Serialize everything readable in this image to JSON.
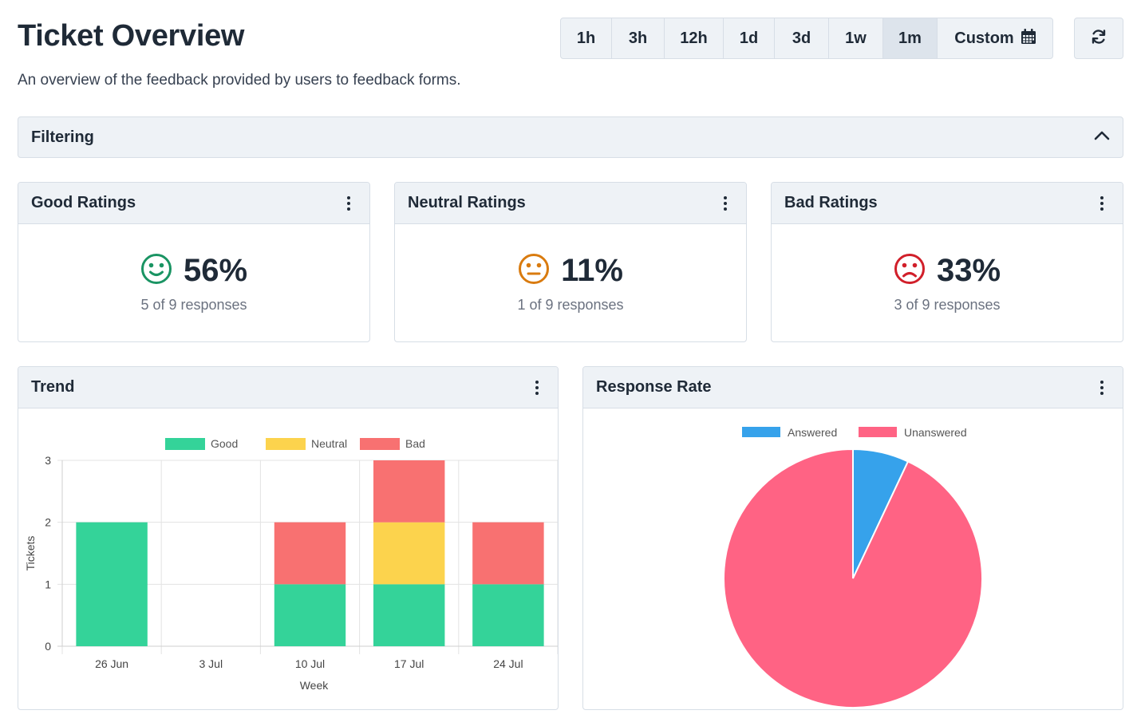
{
  "header": {
    "title": "Ticket Overview",
    "subtitle": "An overview of the feedback provided by users to feedback forms."
  },
  "time_ranges": [
    {
      "label": "1h",
      "active": false
    },
    {
      "label": "3h",
      "active": false
    },
    {
      "label": "12h",
      "active": false
    },
    {
      "label": "1d",
      "active": false
    },
    {
      "label": "3d",
      "active": false
    },
    {
      "label": "1w",
      "active": false
    },
    {
      "label": "1m",
      "active": true
    },
    {
      "label": "Custom",
      "active": false,
      "icon": "calendar-icon"
    }
  ],
  "refresh": {
    "icon": "refresh-icon"
  },
  "filtering": {
    "label": "Filtering",
    "icon": "chevron-up-icon",
    "expanded": true
  },
  "stats": {
    "good": {
      "title": "Good Ratings",
      "value": "56%",
      "sub": "5 of 9 responses",
      "icon": "smile-icon",
      "color": "#1a9463"
    },
    "neutral": {
      "title": "Neutral Ratings",
      "value": "11%",
      "sub": "1 of 9 responses",
      "icon": "neutral-face-icon",
      "color": "#d97b0f"
    },
    "bad": {
      "title": "Bad Ratings",
      "value": "33%",
      "sub": "3 of 9 responses",
      "icon": "frown-icon",
      "color": "#d11f2a"
    }
  },
  "trend": {
    "title": "Trend"
  },
  "response": {
    "title": "Response Rate"
  },
  "chart_data": [
    {
      "type": "bar",
      "stacked": true,
      "categories": [
        "26 Jun",
        "3 Jul",
        "10 Jul",
        "17 Jul",
        "24 Jul"
      ],
      "series": [
        {
          "name": "Good",
          "color": "#34d399",
          "values": [
            2,
            0,
            1,
            1,
            1
          ]
        },
        {
          "name": "Neutral",
          "color": "#fcd34d",
          "values": [
            0,
            0,
            0,
            1,
            0
          ]
        },
        {
          "name": "Bad",
          "color": "#f87171",
          "values": [
            0,
            0,
            1,
            1,
            1
          ]
        }
      ],
      "xlabel": "Week",
      "ylabel": "Tickets",
      "ylim": [
        0,
        3
      ],
      "yticks": [
        0,
        1,
        2,
        3
      ],
      "grid": true,
      "legend": "top"
    },
    {
      "type": "pie",
      "labels": [
        "Answered",
        "Unanswered"
      ],
      "values": [
        7,
        93
      ],
      "colors": [
        "#36a2eb",
        "#ff6384"
      ],
      "legend": "top"
    }
  ]
}
